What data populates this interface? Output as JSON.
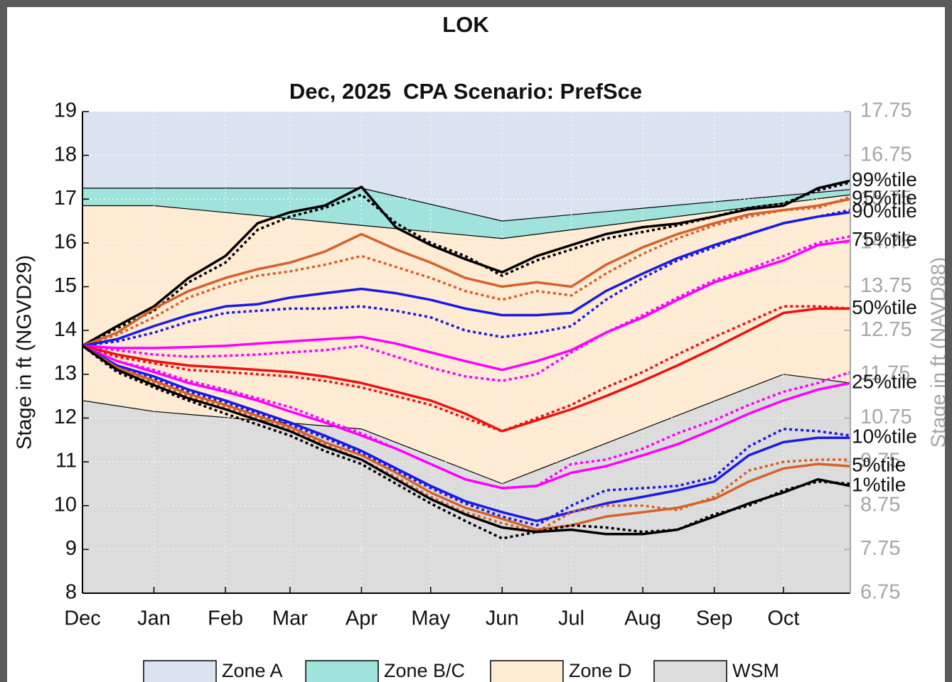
{
  "chart_data": {
    "type": "line",
    "title": "LOK",
    "subtitle": "Dec, 2025  CPA Scenario: PrefSce",
    "y_label": "Stage in ft (NGVD29)",
    "y2_label": "Stage in ft (NAVD88)",
    "xlim": [
      0,
      333
    ],
    "xticks": [
      {
        "value": 0,
        "label": "Dec"
      },
      {
        "value": 31,
        "label": "Jan"
      },
      {
        "value": 62,
        "label": "Feb"
      },
      {
        "value": 90,
        "label": "Mar"
      },
      {
        "value": 121,
        "label": "Apr"
      },
      {
        "value": 151,
        "label": "May"
      },
      {
        "value": 182,
        "label": "Jun"
      },
      {
        "value": 212,
        "label": "Jul"
      },
      {
        "value": 243,
        "label": "Aug"
      },
      {
        "value": 274,
        "label": "Sep"
      },
      {
        "value": 304,
        "label": "Oct"
      }
    ],
    "ylim": [
      8,
      19
    ],
    "yticks": [
      8,
      9,
      10,
      11,
      12,
      13,
      14,
      15,
      16,
      17,
      18,
      19
    ],
    "y2lim": [
      6.75,
      17.75
    ],
    "y2ticks": [
      6.75,
      7.75,
      8.75,
      9.75,
      10.75,
      11.75,
      12.75,
      13.75,
      14.75,
      15.75,
      16.75,
      17.75
    ],
    "grid": true,
    "legend": "bottom",
    "zones": [
      {
        "name": "Zone A",
        "color": "#dbe2f0"
      },
      {
        "name": "Zone B/C",
        "color": "#9fe3dc",
        "x": [
          0,
          121,
          182,
          333
        ],
        "values": [
          17.25,
          17.25,
          16.5,
          17.22
        ]
      },
      {
        "name": "Zone D",
        "color": "#fdebd4",
        "x": [
          0,
          31,
          121,
          182,
          333
        ],
        "values": [
          16.85,
          16.85,
          16.4,
          16.1,
          17.1
        ]
      },
      {
        "name": "WSM",
        "color": "#dcdcdc",
        "x": [
          0,
          31,
          121,
          182,
          304,
          333
        ],
        "values": [
          12.4,
          12.15,
          11.75,
          10.5,
          13.0,
          12.8
        ]
      }
    ],
    "x": [
      0,
      15,
      31,
      46,
      62,
      76,
      90,
      105,
      121,
      136,
      151,
      166,
      182,
      197,
      212,
      227,
      243,
      258,
      274,
      289,
      304,
      319,
      333
    ],
    "series": [
      {
        "name": "99%tile",
        "color": "#000000",
        "style": "solid",
        "values": [
          13.65,
          14.1,
          14.55,
          15.2,
          15.7,
          16.45,
          16.7,
          16.85,
          17.28,
          16.35,
          15.95,
          15.63,
          15.33,
          15.7,
          15.95,
          16.2,
          16.36,
          16.44,
          16.6,
          16.77,
          16.85,
          17.25,
          17.42
        ]
      },
      {
        "color": "#000000",
        "style": "dotted",
        "values": [
          13.65,
          14.05,
          14.45,
          15.1,
          15.55,
          16.3,
          16.6,
          16.8,
          17.1,
          16.45,
          16.0,
          15.7,
          15.25,
          15.6,
          15.85,
          16.1,
          16.25,
          16.4,
          16.6,
          16.8,
          16.9,
          17.2,
          17.38
        ]
      },
      {
        "name": "95%tile",
        "color": "#d4622a",
        "style": "solid",
        "values": [
          13.65,
          13.95,
          14.5,
          14.9,
          15.2,
          15.4,
          15.55,
          15.8,
          16.2,
          15.85,
          15.55,
          15.2,
          15.0,
          15.1,
          15.0,
          15.5,
          15.9,
          16.2,
          16.45,
          16.65,
          16.75,
          16.85,
          17.0
        ]
      },
      {
        "color": "#d4622a",
        "style": "dotted",
        "values": [
          13.65,
          13.9,
          14.3,
          14.75,
          15.05,
          15.25,
          15.35,
          15.5,
          15.7,
          15.45,
          15.2,
          14.9,
          14.7,
          14.9,
          14.8,
          15.3,
          15.75,
          16.1,
          16.4,
          16.6,
          16.75,
          16.8,
          17.05
        ]
      },
      {
        "name": "90%tile",
        "color": "#1a1ae6",
        "style": "solid",
        "values": [
          13.65,
          13.8,
          14.1,
          14.35,
          14.55,
          14.6,
          14.75,
          14.85,
          14.95,
          14.85,
          14.7,
          14.5,
          14.35,
          14.35,
          14.4,
          14.9,
          15.3,
          15.65,
          15.95,
          16.2,
          16.45,
          16.6,
          16.7
        ]
      },
      {
        "color": "#1a1ae6",
        "style": "dotted",
        "values": [
          13.65,
          13.75,
          13.95,
          14.2,
          14.4,
          14.45,
          14.5,
          14.5,
          14.55,
          14.45,
          14.3,
          14.0,
          13.85,
          13.95,
          14.1,
          14.7,
          15.2,
          15.6,
          15.9,
          16.2,
          16.45,
          16.6,
          16.75
        ]
      },
      {
        "name": "75%tile",
        "color": "#ff00ff",
        "style": "solid",
        "values": [
          13.65,
          13.6,
          13.6,
          13.62,
          13.65,
          13.7,
          13.75,
          13.8,
          13.85,
          13.7,
          13.5,
          13.3,
          13.1,
          13.3,
          13.55,
          13.95,
          14.3,
          14.7,
          15.1,
          15.35,
          15.6,
          15.95,
          16.05
        ]
      },
      {
        "color": "#ff00ff",
        "style": "dotted",
        "values": [
          13.65,
          13.55,
          13.45,
          13.4,
          13.42,
          13.45,
          13.5,
          13.55,
          13.65,
          13.4,
          13.15,
          12.95,
          12.85,
          13.0,
          13.5,
          13.95,
          14.35,
          14.75,
          15.15,
          15.4,
          15.7,
          16.0,
          16.15
        ]
      },
      {
        "name": "50%tile",
        "color": "#ee1111",
        "style": "solid",
        "values": [
          13.65,
          13.45,
          13.3,
          13.2,
          13.15,
          13.1,
          13.05,
          12.95,
          12.8,
          12.6,
          12.4,
          12.1,
          11.7,
          11.95,
          12.2,
          12.5,
          12.85,
          13.2,
          13.6,
          14.0,
          14.4,
          14.5,
          14.5
        ]
      },
      {
        "color": "#ee1111",
        "style": "dotted",
        "values": [
          13.65,
          13.4,
          13.25,
          13.1,
          13.05,
          13.0,
          12.95,
          12.85,
          12.7,
          12.5,
          12.3,
          12.0,
          11.7,
          12.0,
          12.3,
          12.7,
          13.05,
          13.45,
          13.85,
          14.2,
          14.55,
          14.55,
          14.5
        ]
      },
      {
        "name": "25%tile",
        "color": "#ff00ff",
        "style": "solid",
        "values": [
          13.65,
          13.3,
          13.05,
          12.8,
          12.6,
          12.4,
          12.15,
          11.9,
          11.6,
          11.3,
          10.95,
          10.6,
          10.4,
          10.45,
          10.75,
          10.9,
          11.15,
          11.4,
          11.75,
          12.1,
          12.4,
          12.65,
          12.8
        ]
      },
      {
        "color": "#ff00ff",
        "style": "dotted",
        "values": [
          13.65,
          13.3,
          13.1,
          12.85,
          12.65,
          12.45,
          12.25,
          11.95,
          11.65,
          11.3,
          10.95,
          10.6,
          10.4,
          10.45,
          10.95,
          11.05,
          11.3,
          11.65,
          11.95,
          12.3,
          12.6,
          12.8,
          13.05
        ]
      },
      {
        "name": "10%tile",
        "color": "#1a1ae6",
        "style": "solid",
        "values": [
          13.65,
          13.2,
          12.95,
          12.65,
          12.4,
          12.15,
          11.9,
          11.6,
          11.25,
          10.85,
          10.45,
          10.1,
          9.85,
          9.65,
          9.85,
          10.05,
          10.2,
          10.35,
          10.55,
          11.15,
          11.45,
          11.55,
          11.55
        ]
      },
      {
        "color": "#1a1ae6",
        "style": "dotted",
        "values": [
          13.65,
          13.2,
          12.9,
          12.6,
          12.35,
          12.1,
          11.85,
          11.55,
          11.2,
          10.8,
          10.4,
          10.05,
          9.75,
          9.55,
          10.0,
          10.35,
          10.4,
          10.45,
          10.65,
          11.35,
          11.75,
          11.7,
          11.6
        ]
      },
      {
        "name": "5%tile",
        "color": "#d4622a",
        "style": "solid",
        "values": [
          13.65,
          13.15,
          12.85,
          12.55,
          12.3,
          12.05,
          11.8,
          11.45,
          11.15,
          10.75,
          10.3,
          9.95,
          9.7,
          9.45,
          9.55,
          9.75,
          9.85,
          9.95,
          10.15,
          10.55,
          10.85,
          10.95,
          10.9
        ]
      },
      {
        "color": "#d4622a",
        "style": "dotted",
        "values": [
          13.65,
          13.1,
          12.8,
          12.5,
          12.25,
          12.0,
          11.75,
          11.4,
          11.05,
          10.65,
          10.2,
          9.85,
          9.6,
          9.4,
          9.85,
          10.0,
          10.0,
          9.9,
          10.2,
          10.8,
          11.0,
          11.05,
          11.05
        ]
      },
      {
        "name": "1%tile",
        "color": "#000000",
        "style": "solid",
        "values": [
          13.65,
          13.1,
          12.75,
          12.45,
          12.2,
          11.95,
          11.7,
          11.35,
          11.05,
          10.6,
          10.15,
          9.8,
          9.5,
          9.4,
          9.45,
          9.35,
          9.35,
          9.45,
          9.75,
          10.05,
          10.3,
          10.6,
          10.45
        ]
      },
      {
        "color": "#000000",
        "style": "dotted",
        "values": [
          13.65,
          13.05,
          12.7,
          12.4,
          12.1,
          11.85,
          11.6,
          11.25,
          10.95,
          10.5,
          10.05,
          9.65,
          9.25,
          9.4,
          9.55,
          9.5,
          9.4,
          9.45,
          9.8,
          10.0,
          10.35,
          10.55,
          10.5
        ]
      }
    ]
  }
}
